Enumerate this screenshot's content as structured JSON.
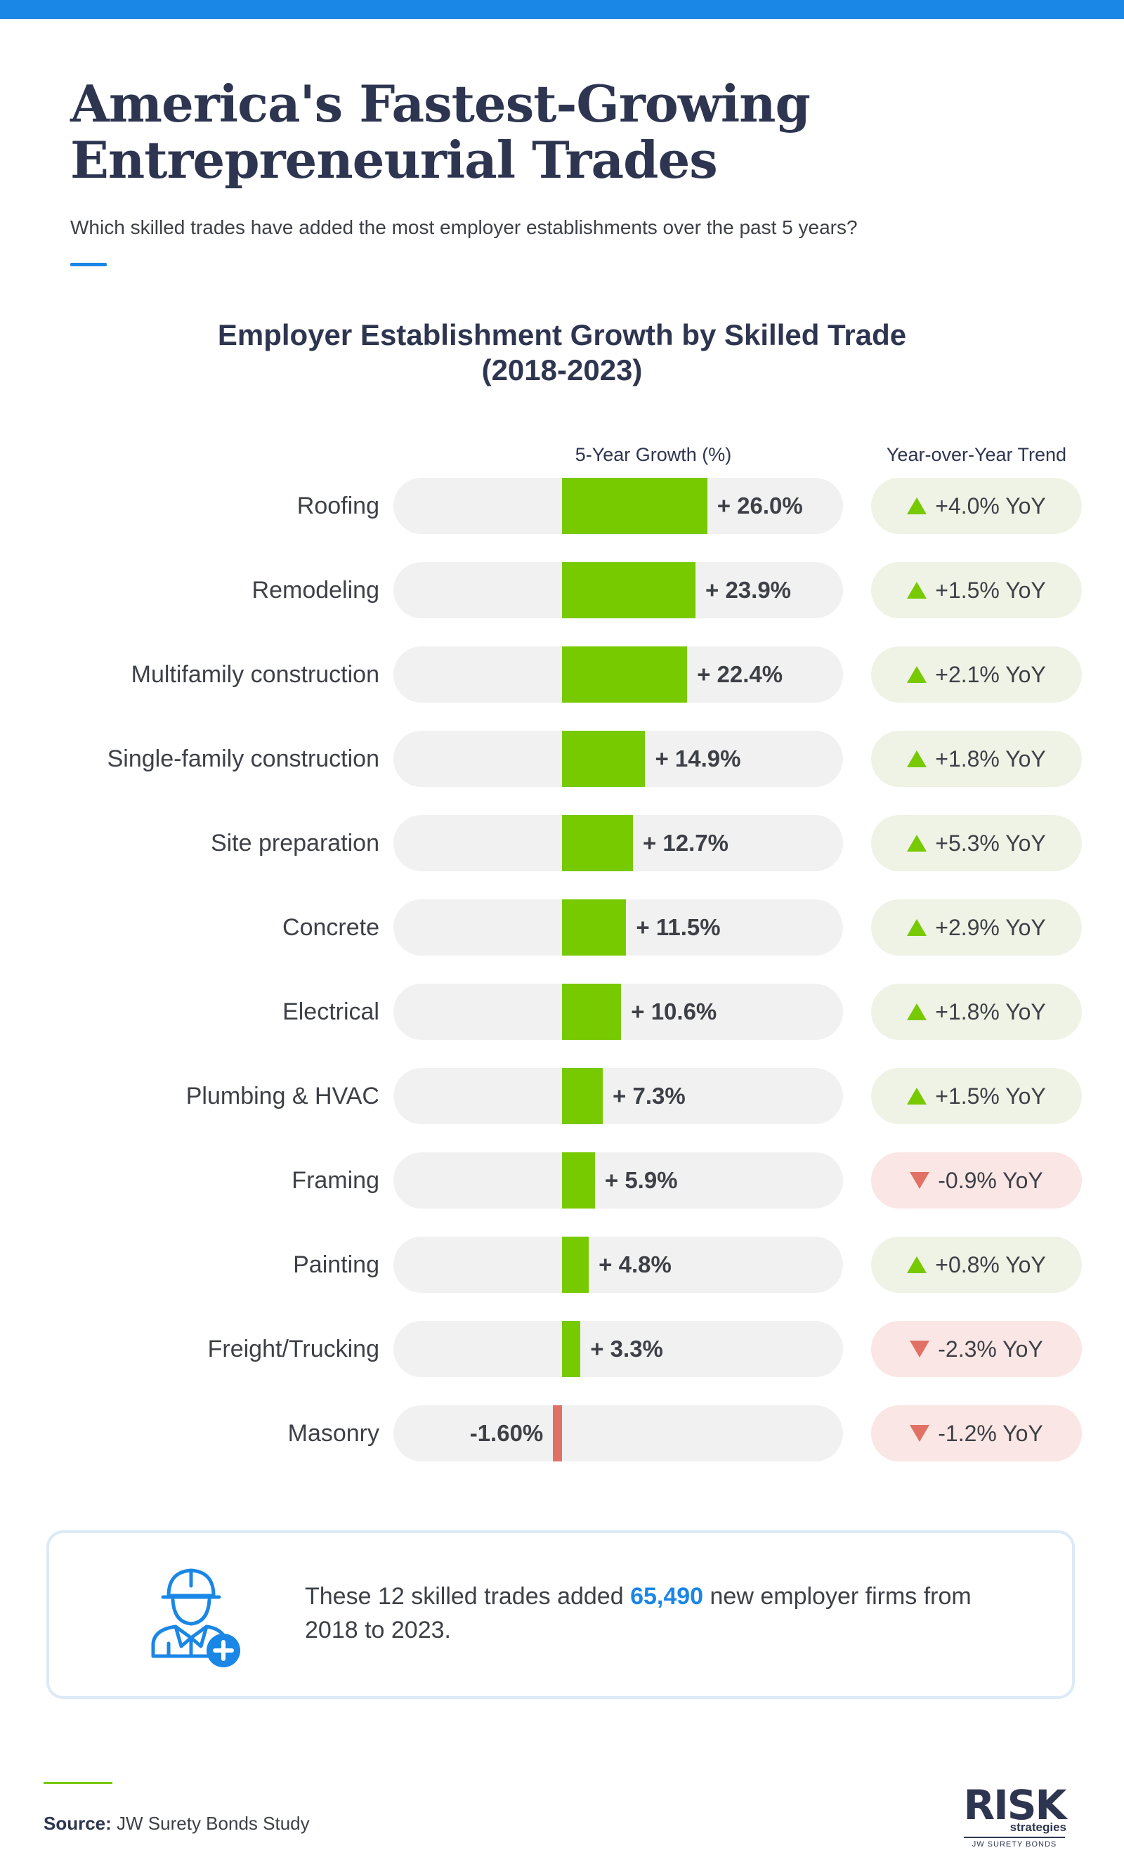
{
  "title_line1": "America's Fastest-Growing",
  "title_line2": "Entrepreneurial Trades",
  "subtitle": "Which skilled trades have added the most employer establishments over the past 5 years?",
  "colors": {
    "accent": "#1a86e6",
    "positive": "#77c900",
    "negative": "#e27165",
    "navy": "#2e3550"
  },
  "chart_data": {
    "type": "bar",
    "title_line1": "Employer Establishment Growth by Skilled Trade",
    "title_line2": "(2018-2023)",
    "growth_header": "5-Year Growth (%)",
    "trend_header": "Year-over-Year Trend",
    "categories": [
      "Roofing",
      "Remodeling",
      "Multifamily construction",
      "Single-family construction",
      "Site preparation",
      "Concrete",
      "Electrical",
      "Plumbing & HVAC",
      "Framing",
      "Painting",
      "Freight/Trucking",
      "Masonry"
    ],
    "values": [
      26.0,
      23.9,
      22.4,
      14.9,
      12.7,
      11.5,
      10.6,
      7.3,
      5.9,
      4.8,
      3.3,
      -1.6
    ],
    "value_labels": [
      "+ 26.0%",
      "+ 23.9%",
      "+ 22.4%",
      "+ 14.9%",
      "+ 12.7%",
      "+ 11.5%",
      "+ 10.6%",
      "+ 7.3%",
      "+ 5.9%",
      "+ 4.8%",
      "+ 3.3%",
      "-1.60%"
    ],
    "yoy_values": [
      4.0,
      1.5,
      2.1,
      1.8,
      5.3,
      2.9,
      1.8,
      1.5,
      -0.9,
      0.8,
      -2.3,
      -1.2
    ],
    "yoy_labels": [
      "+4.0% YoY",
      "+1.5% YoY",
      "+2.1% YoY",
      "+1.8% YoY",
      "+5.3% YoY",
      "+2.9% YoY",
      "+1.8% YoY",
      "+1.5% YoY",
      "-0.9% YoY",
      "+0.8% YoY",
      "-2.3% YoY",
      "-1.2% YoY"
    ],
    "xlim": [
      -10,
      32
    ]
  },
  "callout": {
    "text_before": "These 12 skilled trades added ",
    "highlight": "65,490",
    "text_after": " new employer firms from 2018 to 2023.",
    "icon": "construction-worker-plus-icon"
  },
  "source": {
    "label": "Source:",
    "text": "JW Surety Bonds Study"
  },
  "logo": {
    "main": "RISK",
    "sub": "strategies",
    "tagline": "JW SURETY BONDS"
  }
}
